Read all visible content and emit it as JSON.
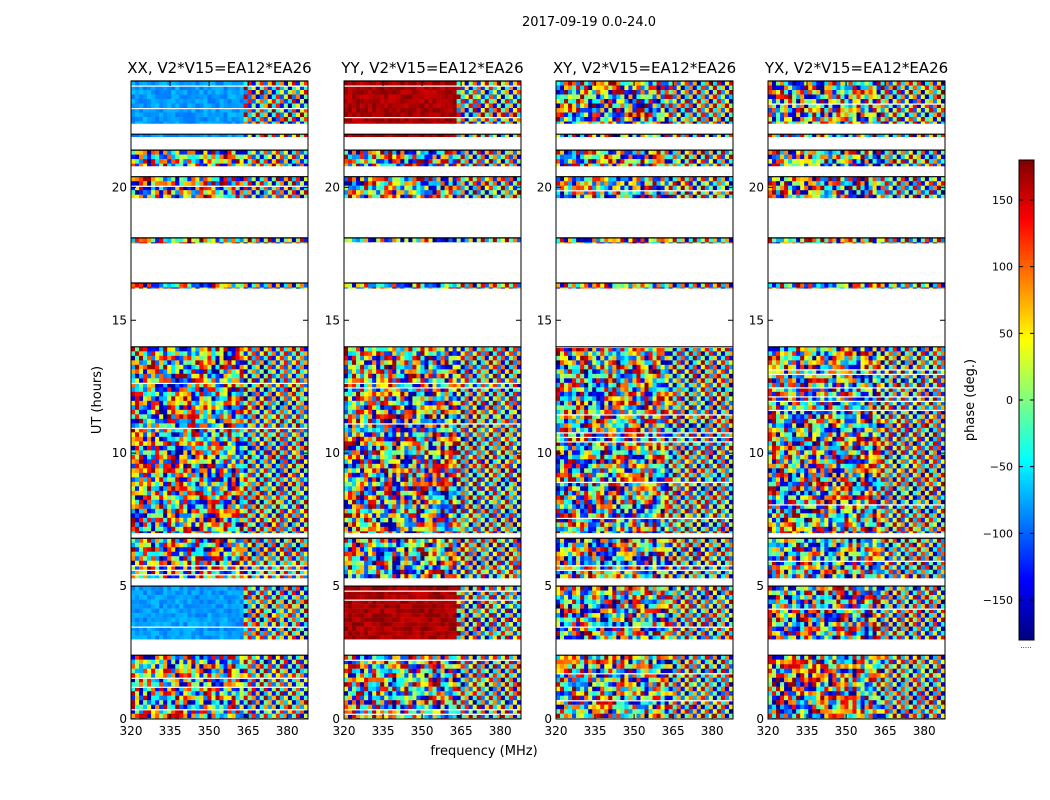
{
  "chart_data": {
    "type": "heatmap",
    "suptitle": "2017-09-19 0.0-24.0",
    "xlabel": "frequency (MHz)",
    "ylabel": "UT (hours)",
    "xlim": [
      320,
      388
    ],
    "ylim": [
      0,
      24
    ],
    "xticks": [
      320,
      335,
      350,
      365,
      380
    ],
    "yticks": [
      0,
      5,
      10,
      15,
      20
    ],
    "panels": [
      {
        "title": "XX, V2*V15=EA12*EA26",
        "dominant_phase_low_band": -80,
        "coherent_hours": [
          [
            3.0,
            5.0
          ],
          [
            21.6,
            24.0
          ]
        ]
      },
      {
        "title": "YY, V2*V15=EA12*EA26",
        "dominant_phase_low_band": 165,
        "coherent_hours": [
          [
            3.0,
            5.0
          ],
          [
            21.6,
            24.0
          ]
        ]
      },
      {
        "title": "XY, V2*V15=EA12*EA26",
        "dominant_phase_low_band": null,
        "coherent_hours": []
      },
      {
        "title": "YX, V2*V15=EA12*EA26",
        "dominant_phase_low_band": null,
        "coherent_hours": []
      }
    ],
    "data_hours": [
      [
        0.0,
        2.4
      ],
      [
        3.0,
        5.0
      ],
      [
        5.3,
        6.8
      ],
      [
        7.0,
        14.0
      ],
      [
        16.2,
        16.4
      ],
      [
        17.9,
        18.1
      ],
      [
        19.6,
        20.4
      ],
      [
        20.8,
        21.4
      ],
      [
        21.9,
        22.0
      ],
      [
        22.4,
        24.0
      ]
    ],
    "colorbar": {
      "label": "phase (deg.)",
      "range": [
        -180,
        180
      ],
      "ticks": [
        -150,
        -100,
        -50,
        0,
        50,
        100,
        150
      ],
      "tick_labels": [
        "−150",
        "−100",
        "−50",
        "0",
        "50",
        "100",
        "150"
      ],
      "colormap": "jet",
      "colors": [
        "#00007f",
        "#0000ff",
        "#007fff",
        "#00ffff",
        "#7fff7f",
        "#ffff00",
        "#ff7f00",
        "#ff0000",
        "#7f0000"
      ],
      "under_label": "....."
    }
  }
}
